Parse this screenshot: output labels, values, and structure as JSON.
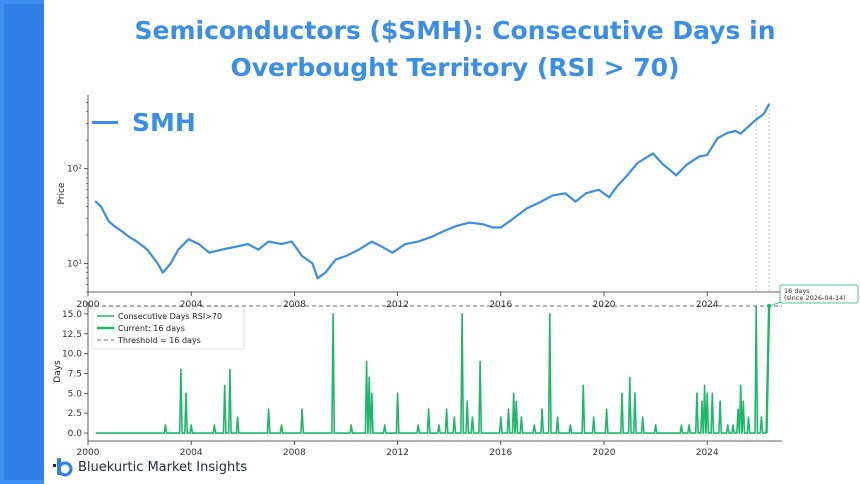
{
  "title": "Semiconductors ($SMH): Consecutive Days in Overbought Territory (RSI > 70)",
  "footer": {
    "brand": "Bluekurtic Market Insights"
  },
  "colors": {
    "accent": "#3b8ee6",
    "days": "#1fb86a",
    "sidebar": "#2f7fe6"
  },
  "chart_data": [
    {
      "type": "line",
      "ylabel": "Price",
      "yscale": "log",
      "ylim": [
        5,
        600
      ],
      "xlim": [
        2000.0,
        2026.9
      ],
      "x_ticks": [
        "2000",
        "2004",
        "2008",
        "2012",
        "2016",
        "2020",
        "2024"
      ],
      "y_ticks": [
        "10¹",
        "10²"
      ],
      "series": [
        {
          "name": "SMH",
          "x": [
            2000.3,
            2000.5,
            2000.8,
            2001.0,
            2001.3,
            2001.6,
            2001.9,
            2002.3,
            2002.7,
            2002.9,
            2003.2,
            2003.5,
            2003.9,
            2004.3,
            2004.7,
            2005.2,
            2005.7,
            2006.2,
            2006.6,
            2007.0,
            2007.5,
            2007.9,
            2008.3,
            2008.7,
            2008.9,
            2009.2,
            2009.6,
            2010.0,
            2010.5,
            2011.0,
            2011.4,
            2011.8,
            2012.3,
            2012.8,
            2013.3,
            2013.8,
            2014.3,
            2014.8,
            2015.3,
            2015.7,
            2016.0,
            2016.5,
            2017.0,
            2017.5,
            2018.0,
            2018.5,
            2018.9,
            2019.3,
            2019.8,
            2020.2,
            2020.5,
            2020.9,
            2021.3,
            2021.9,
            2022.3,
            2022.6,
            2022.8,
            2023.2,
            2023.7,
            2024.0,
            2024.4,
            2024.8,
            2025.1,
            2025.3,
            2025.6,
            2025.9,
            2026.2,
            2026.4
          ],
          "values": [
            45,
            40,
            28,
            25,
            22,
            19,
            17,
            14,
            10,
            8,
            10,
            14,
            18,
            16,
            13,
            14,
            15,
            16,
            14,
            17,
            16,
            17,
            12,
            10,
            7,
            8,
            11,
            12,
            14,
            17,
            15,
            13,
            16,
            17,
            19,
            22,
            25,
            27,
            26,
            24,
            24,
            30,
            38,
            44,
            52,
            55,
            45,
            55,
            60,
            50,
            65,
            85,
            115,
            145,
            110,
            95,
            85,
            110,
            135,
            140,
            210,
            240,
            250,
            235,
            280,
            330,
            380,
            480
          ]
        }
      ]
    },
    {
      "type": "line",
      "ylabel": "Days",
      "ylim": [
        -1,
        16.5
      ],
      "xlim": [
        2000.0,
        2026.9
      ],
      "x_ticks": [
        "2000",
        "2004",
        "2008",
        "2012",
        "2016",
        "2020",
        "2024"
      ],
      "y_ticks": [
        "0.0",
        "2.5",
        "5.0",
        "7.5",
        "10.0",
        "12.5",
        "15.0"
      ],
      "legend": [
        "Consecutive Days RSI>70",
        "Current: 16 days",
        "Threshold = 16 days"
      ],
      "threshold": 16,
      "annotation": [
        "16 days",
        "(since 2026-04-14)"
      ],
      "series": [
        {
          "name": "Consecutive Days RSI>70",
          "spikes": [
            [
              2003.0,
              1
            ],
            [
              2003.6,
              8
            ],
            [
              2003.8,
              5
            ],
            [
              2004.0,
              1
            ],
            [
              2004.9,
              1
            ],
            [
              2005.3,
              6
            ],
            [
              2005.5,
              8
            ],
            [
              2005.8,
              2
            ],
            [
              2007.0,
              3
            ],
            [
              2007.5,
              1
            ],
            [
              2008.3,
              3
            ],
            [
              2009.5,
              15
            ],
            [
              2010.2,
              1
            ],
            [
              2010.8,
              9
            ],
            [
              2010.9,
              7
            ],
            [
              2011.0,
              5
            ],
            [
              2011.5,
              1
            ],
            [
              2012.0,
              5
            ],
            [
              2012.8,
              1
            ],
            [
              2013.2,
              3
            ],
            [
              2013.6,
              1
            ],
            [
              2013.9,
              3
            ],
            [
              2014.2,
              2
            ],
            [
              2014.5,
              15
            ],
            [
              2014.7,
              4
            ],
            [
              2014.9,
              2
            ],
            [
              2015.2,
              9
            ],
            [
              2016.0,
              2
            ],
            [
              2016.3,
              3
            ],
            [
              2016.5,
              5
            ],
            [
              2016.6,
              4
            ],
            [
              2016.8,
              2
            ],
            [
              2017.3,
              1
            ],
            [
              2017.6,
              3
            ],
            [
              2017.9,
              15
            ],
            [
              2018.2,
              2
            ],
            [
              2018.7,
              1
            ],
            [
              2019.2,
              6
            ],
            [
              2019.6,
              2
            ],
            [
              2020.1,
              3
            ],
            [
              2020.7,
              5
            ],
            [
              2021.0,
              7
            ],
            [
              2021.2,
              5
            ],
            [
              2021.5,
              2
            ],
            [
              2022.0,
              1
            ],
            [
              2023.0,
              1
            ],
            [
              2023.3,
              1
            ],
            [
              2023.6,
              5
            ],
            [
              2023.8,
              4
            ],
            [
              2023.9,
              6
            ],
            [
              2024.0,
              5
            ],
            [
              2024.2,
              5
            ],
            [
              2024.5,
              4
            ],
            [
              2024.8,
              1
            ],
            [
              2025.0,
              1
            ],
            [
              2025.2,
              3
            ],
            [
              2025.3,
              6
            ],
            [
              2025.4,
              4
            ],
            [
              2025.6,
              2
            ],
            [
              2025.9,
              16
            ],
            [
              2026.1,
              2
            ]
          ]
        },
        {
          "name": "Current: 16 days",
          "x": [
            2026.3,
            2026.4
          ],
          "values": [
            16,
            16
          ]
        }
      ]
    }
  ]
}
